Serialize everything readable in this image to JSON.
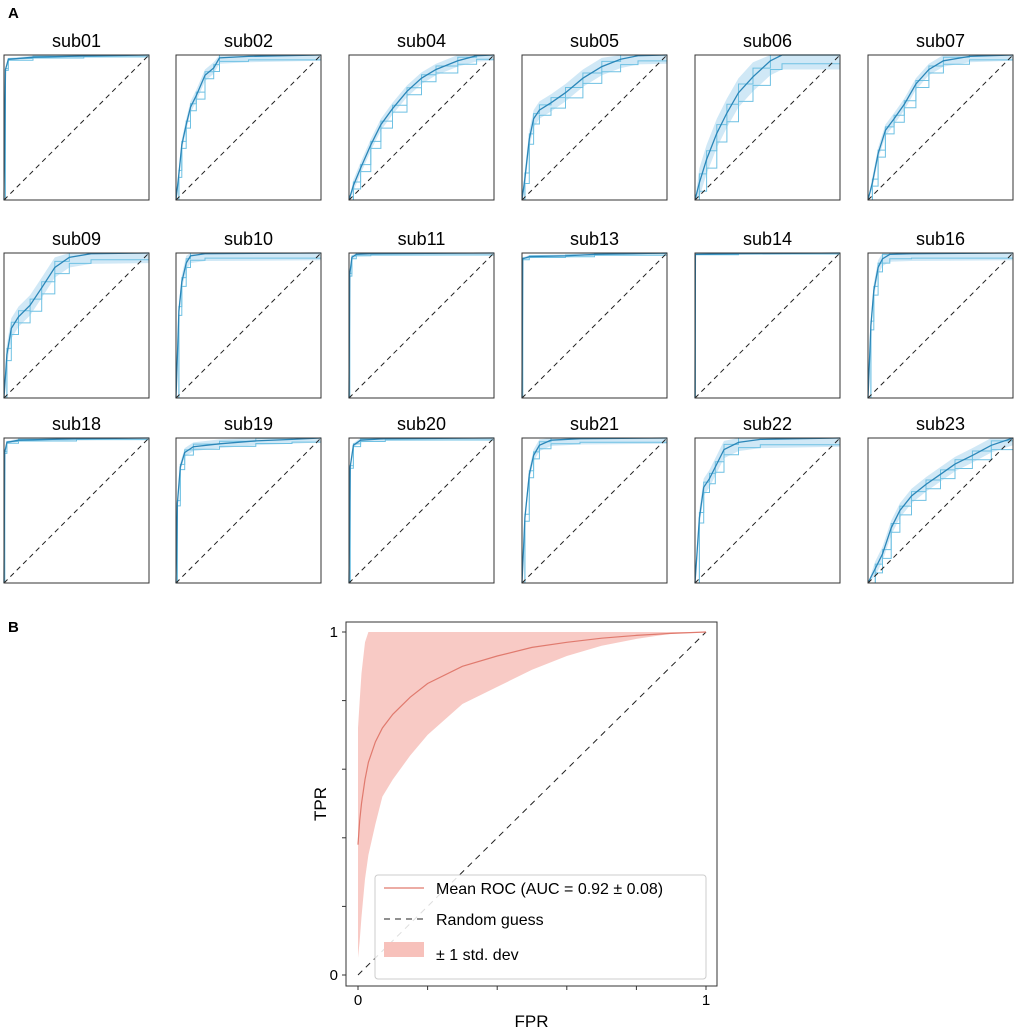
{
  "panels": {
    "a": "A",
    "b": "B"
  },
  "chart_data": [
    {
      "type": "line",
      "panel": "A",
      "title": "",
      "xlabel": "",
      "ylabel": "",
      "xlim": [
        0,
        1
      ],
      "ylim": [
        0,
        1
      ],
      "note": "Per-subject ROC curves (light blue), mean ROC (dark blue), ±1 std band (blue fill), chance diagonal (dashed)",
      "colors": {
        "curve": "#6fc1e3",
        "mean": "#2b86b8",
        "band": "#aad6ee",
        "diagonal": "#222222",
        "frame": "#333333"
      },
      "subplots": [
        {
          "title": "sub01",
          "mean": [
            [
              0,
              0
            ],
            [
              0.01,
              0.9
            ],
            [
              0.03,
              0.97
            ],
            [
              0.2,
              0.985
            ],
            [
              0.55,
              0.993
            ],
            [
              1,
              1
            ]
          ],
          "std": 0.01
        },
        {
          "title": "sub02",
          "mean": [
            [
              0,
              0
            ],
            [
              0.02,
              0.18
            ],
            [
              0.04,
              0.38
            ],
            [
              0.07,
              0.52
            ],
            [
              0.1,
              0.64
            ],
            [
              0.14,
              0.72
            ],
            [
              0.2,
              0.86
            ],
            [
              0.26,
              0.91
            ],
            [
              0.3,
              0.98
            ],
            [
              0.5,
              0.99
            ],
            [
              1,
              1
            ]
          ],
          "std": 0.04
        },
        {
          "title": "sub04",
          "mean": [
            [
              0,
              0
            ],
            [
              0.03,
              0.1
            ],
            [
              0.08,
              0.22
            ],
            [
              0.15,
              0.38
            ],
            [
              0.22,
              0.52
            ],
            [
              0.3,
              0.63
            ],
            [
              0.4,
              0.75
            ],
            [
              0.5,
              0.84
            ],
            [
              0.6,
              0.9
            ],
            [
              0.75,
              0.96
            ],
            [
              0.88,
              0.995
            ],
            [
              1,
              1
            ]
          ],
          "std": 0.04
        },
        {
          "title": "sub05",
          "mean": [
            [
              0,
              0
            ],
            [
              0.02,
              0.15
            ],
            [
              0.05,
              0.42
            ],
            [
              0.08,
              0.56
            ],
            [
              0.12,
              0.62
            ],
            [
              0.2,
              0.67
            ],
            [
              0.3,
              0.74
            ],
            [
              0.42,
              0.84
            ],
            [
              0.55,
              0.92
            ],
            [
              0.68,
              0.97
            ],
            [
              0.8,
              0.995
            ],
            [
              1,
              1
            ]
          ],
          "std": 0.06
        },
        {
          "title": "sub06",
          "mean": [
            [
              0,
              0
            ],
            [
              0.03,
              0.12
            ],
            [
              0.08,
              0.28
            ],
            [
              0.15,
              0.46
            ],
            [
              0.22,
              0.6
            ],
            [
              0.3,
              0.74
            ],
            [
              0.4,
              0.85
            ],
            [
              0.52,
              0.96
            ],
            [
              0.6,
              1
            ],
            [
              1,
              1
            ]
          ],
          "std": 0.1
        },
        {
          "title": "sub07",
          "mean": [
            [
              0,
              0
            ],
            [
              0.03,
              0.12
            ],
            [
              0.07,
              0.32
            ],
            [
              0.12,
              0.48
            ],
            [
              0.18,
              0.56
            ],
            [
              0.25,
              0.66
            ],
            [
              0.33,
              0.8
            ],
            [
              0.42,
              0.9
            ],
            [
              0.52,
              0.96
            ],
            [
              0.7,
              0.99
            ],
            [
              1,
              1
            ]
          ],
          "std": 0.04
        },
        {
          "title": "sub09",
          "mean": [
            [
              0,
              0
            ],
            [
              0.02,
              0.3
            ],
            [
              0.05,
              0.48
            ],
            [
              0.1,
              0.56
            ],
            [
              0.18,
              0.64
            ],
            [
              0.26,
              0.76
            ],
            [
              0.35,
              0.9
            ],
            [
              0.45,
              0.97
            ],
            [
              0.6,
              0.995
            ],
            [
              1,
              1
            ]
          ],
          "std": 0.07
        },
        {
          "title": "sub10",
          "mean": [
            [
              0,
              0
            ],
            [
              0.02,
              0.6
            ],
            [
              0.04,
              0.8
            ],
            [
              0.07,
              0.93
            ],
            [
              0.1,
              0.98
            ],
            [
              0.2,
              0.995
            ],
            [
              1,
              1
            ]
          ],
          "std": 0.05
        },
        {
          "title": "sub11",
          "mean": [
            [
              0,
              0
            ],
            [
              0.005,
              0.85
            ],
            [
              0.02,
              0.97
            ],
            [
              0.05,
              0.99
            ],
            [
              0.15,
              0.995
            ],
            [
              1,
              1
            ]
          ],
          "std": 0.015
        },
        {
          "title": "sub13",
          "mean": [
            [
              0,
              0
            ],
            [
              0.005,
              0.96
            ],
            [
              0.05,
              0.975
            ],
            [
              0.3,
              0.98
            ],
            [
              0.5,
              0.99
            ],
            [
              1,
              1
            ]
          ],
          "std": 0.01
        },
        {
          "title": "sub14",
          "mean": [
            [
              0,
              0
            ],
            [
              0.003,
              0.99
            ],
            [
              0.3,
              0.995
            ],
            [
              1,
              1
            ]
          ],
          "std": 0.003
        },
        {
          "title": "sub16",
          "mean": [
            [
              0,
              0
            ],
            [
              0.02,
              0.5
            ],
            [
              0.04,
              0.74
            ],
            [
              0.07,
              0.9
            ],
            [
              0.1,
              0.96
            ],
            [
              0.15,
              0.99
            ],
            [
              0.3,
              0.995
            ],
            [
              1,
              1
            ]
          ],
          "std": 0.05
        },
        {
          "title": "sub18",
          "mean": [
            [
              0,
              0
            ],
            [
              0.005,
              0.9
            ],
            [
              0.02,
              0.97
            ],
            [
              0.1,
              0.985
            ],
            [
              0.5,
              0.995
            ],
            [
              1,
              1
            ]
          ],
          "std": 0.01
        },
        {
          "title": "sub19",
          "mean": [
            [
              0,
              0
            ],
            [
              0.01,
              0.55
            ],
            [
              0.03,
              0.8
            ],
            [
              0.06,
              0.9
            ],
            [
              0.12,
              0.94
            ],
            [
              0.3,
              0.96
            ],
            [
              0.55,
              0.98
            ],
            [
              0.8,
              0.99
            ],
            [
              1,
              1
            ]
          ],
          "std": 0.03
        },
        {
          "title": "sub20",
          "mean": [
            [
              0,
              0
            ],
            [
              0.008,
              0.8
            ],
            [
              0.03,
              0.95
            ],
            [
              0.08,
              0.985
            ],
            [
              0.25,
              0.995
            ],
            [
              1,
              1
            ]
          ],
          "std": 0.015
        },
        {
          "title": "sub21",
          "mean": [
            [
              0,
              0
            ],
            [
              0.02,
              0.45
            ],
            [
              0.05,
              0.75
            ],
            [
              0.08,
              0.88
            ],
            [
              0.12,
              0.95
            ],
            [
              0.2,
              0.985
            ],
            [
              0.4,
              0.995
            ],
            [
              1,
              1
            ]
          ],
          "std": 0.04
        },
        {
          "title": "sub22",
          "mean": [
            [
              0,
              0
            ],
            [
              0.03,
              0.45
            ],
            [
              0.06,
              0.66
            ],
            [
              0.1,
              0.72
            ],
            [
              0.14,
              0.8
            ],
            [
              0.2,
              0.92
            ],
            [
              0.3,
              0.97
            ],
            [
              0.45,
              0.99
            ],
            [
              1,
              1
            ]
          ],
          "std": 0.06
        },
        {
          "title": "sub23",
          "mean": [
            [
              0,
              0
            ],
            [
              0.05,
              0.1
            ],
            [
              0.1,
              0.2
            ],
            [
              0.16,
              0.38
            ],
            [
              0.22,
              0.5
            ],
            [
              0.3,
              0.6
            ],
            [
              0.4,
              0.68
            ],
            [
              0.5,
              0.75
            ],
            [
              0.6,
              0.82
            ],
            [
              0.72,
              0.88
            ],
            [
              0.85,
              0.95
            ],
            [
              1,
              1
            ]
          ],
          "std": 0.05
        }
      ]
    },
    {
      "type": "line",
      "panel": "B",
      "title": "",
      "xlabel": "FPR",
      "ylabel": "TPR",
      "xlim": [
        0,
        1
      ],
      "ylim": [
        0,
        1
      ],
      "xticks": [
        0,
        1
      ],
      "yticks": [
        0,
        1
      ],
      "xtick_labels": [
        "0",
        "1"
      ],
      "ytick_labels": [
        "0",
        "1"
      ],
      "legend_position": "bottom-right",
      "series": [
        {
          "name": "Mean ROC (AUC = 0.92 ± 0.08)",
          "x": [
            0,
            0.005,
            0.01,
            0.02,
            0.03,
            0.05,
            0.07,
            0.1,
            0.15,
            0.2,
            0.3,
            0.4,
            0.5,
            0.6,
            0.7,
            0.8,
            0.9,
            1.0
          ],
          "y": [
            0.38,
            0.45,
            0.5,
            0.57,
            0.62,
            0.68,
            0.72,
            0.76,
            0.81,
            0.85,
            0.9,
            0.93,
            0.955,
            0.97,
            0.982,
            0.99,
            0.996,
            1.0
          ],
          "color": "#e07a6e"
        },
        {
          "name": "Random guess",
          "x": [
            0,
            1
          ],
          "y": [
            0,
            1
          ],
          "color": "#222222"
        },
        {
          "name": "± 1 std. dev",
          "x": [
            0,
            0.005,
            0.01,
            0.02,
            0.03,
            0.05,
            0.07,
            0.1,
            0.15,
            0.2,
            0.3,
            0.4,
            0.5,
            0.6,
            0.7,
            0.8,
            0.9,
            1.0
          ],
          "lower": [
            0.05,
            0.1,
            0.17,
            0.28,
            0.35,
            0.44,
            0.52,
            0.57,
            0.64,
            0.7,
            0.79,
            0.84,
            0.89,
            0.93,
            0.96,
            0.98,
            0.995,
            1.0
          ],
          "upper": [
            0.72,
            0.8,
            0.88,
            0.97,
            1.0,
            1.0,
            1.0,
            1.0,
            1.0,
            1.0,
            1.0,
            1.0,
            1.0,
            1.0,
            1.0,
            1.0,
            1.0,
            1.0
          ],
          "color": "#f7c1bb"
        }
      ]
    }
  ]
}
